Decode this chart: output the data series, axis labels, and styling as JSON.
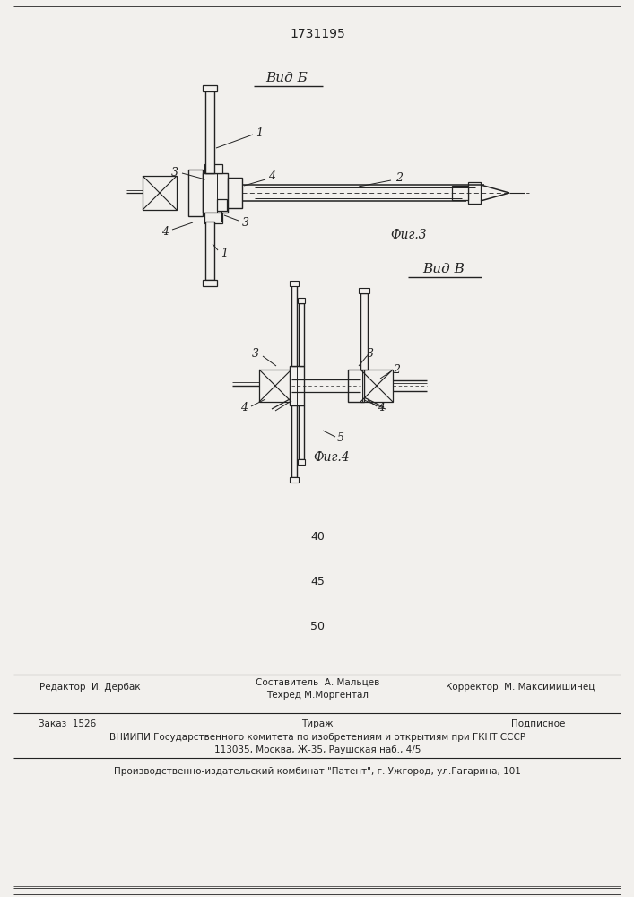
{
  "patent_number": "1731195",
  "bg_color": "#f2f0ed",
  "line_color": "#222222",
  "fig3_label": "Вид Б",
  "fig3_caption": "Фиг.3",
  "fig4_label": "Вид В",
  "fig4_caption": "Фиг.4",
  "numbers_40": "40",
  "numbers_45": "45",
  "numbers_50": "50",
  "footer_line1_left": "Редактор  И. Дербак",
  "footer_line1_center1": "Составитель  А. Мальцев",
  "footer_line1_center2": "Техред М.Моргентал",
  "footer_line1_right": "Корректор  М. Максимишинец",
  "footer_line2_left": "Заказ  1526",
  "footer_line2_center": "Тираж",
  "footer_line2_right": "Подписное",
  "footer_line3": "ВНИИПИ Государственного комитета по изобретениям и открытиям при ГКНТ СССР",
  "footer_line4": "113035, Москва, Ж-35, Раушская наб., 4/5",
  "footer_line5": "Производственно-издательский комбинат \"Патент\", г. Ужгород, ул.Гагарина, 101"
}
